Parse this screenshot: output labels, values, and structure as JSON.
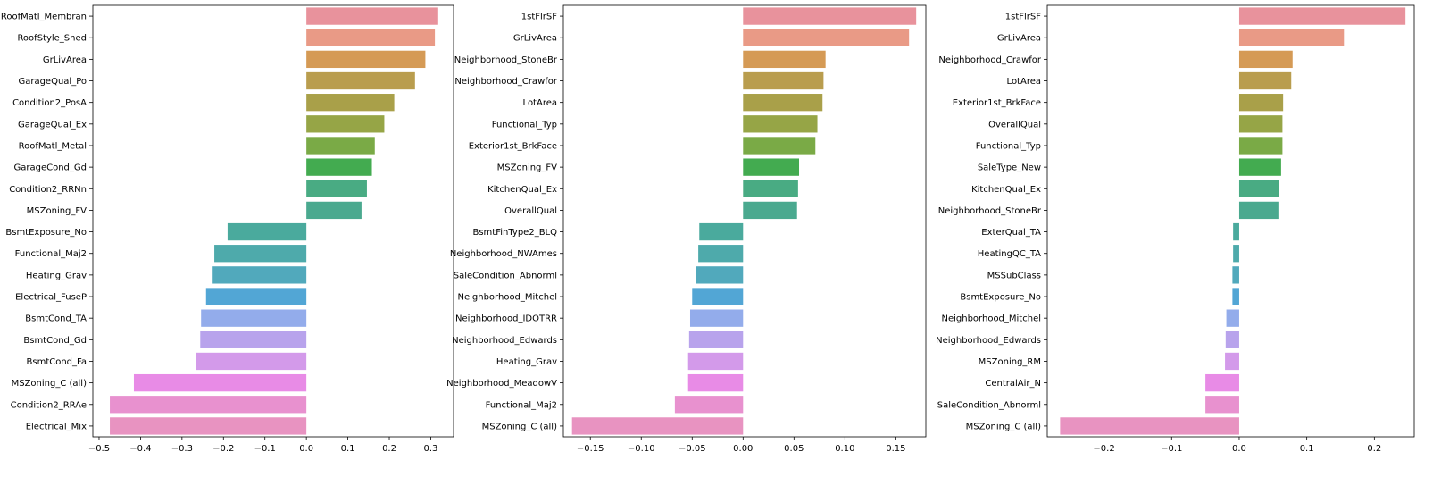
{
  "chart_data": [
    {
      "type": "bar",
      "orientation": "horizontal",
      "xlim": [
        -0.515,
        0.355
      ],
      "xticks": [
        -0.5,
        -0.4,
        -0.3,
        -0.2,
        -0.1,
        0.0,
        0.1,
        0.2,
        0.3
      ],
      "xtick_labels": [
        "−0.5",
        "−0.4",
        "−0.3",
        "−0.2",
        "−0.1",
        "0.0",
        "0.1",
        "0.2",
        "0.3"
      ],
      "categories": [
        "RoofMatl_Membran",
        "RoofStyle_Shed",
        "GrLivArea",
        "GarageQual_Po",
        "Condition2_PosA",
        "GarageQual_Ex",
        "RoofMatl_Metal",
        "GarageCond_Gd",
        "Condition2_RRNn",
        "MSZoning_FV",
        "BsmtExposure_No",
        "Functional_Maj2",
        "Heating_Grav",
        "Electrical_FuseP",
        "BsmtCond_TA",
        "BsmtCond_Gd",
        "BsmtCond_Fa",
        "MSZoning_C (all)",
        "Condition2_RRAe",
        "Electrical_Mix"
      ],
      "values": [
        0.318,
        0.31,
        0.287,
        0.262,
        0.212,
        0.188,
        0.165,
        0.158,
        0.146,
        0.133,
        -0.19,
        -0.222,
        -0.226,
        -0.242,
        -0.254,
        -0.256,
        -0.267,
        -0.416,
        -0.474,
        -0.474
      ]
    },
    {
      "type": "bar",
      "orientation": "horizontal",
      "xlim": [
        -0.1765,
        0.1795
      ],
      "xticks": [
        -0.15,
        -0.1,
        -0.05,
        0.0,
        0.05,
        0.1,
        0.15
      ],
      "xtick_labels": [
        "−0.15",
        "−0.10",
        "−0.05",
        "0.00",
        "0.05",
        "0.10",
        "0.15"
      ],
      "categories": [
        "1stFlrSF",
        "GrLivArea",
        "Neighborhood_StoneBr",
        "Neighborhood_Crawfor",
        "LotArea",
        "Functional_Typ",
        "Exterior1st_BrkFace",
        "MSZoning_FV",
        "KitchenQual_Ex",
        "OverallQual",
        "BsmtFinType2_BLQ",
        "Neighborhood_NWAmes",
        "SaleCondition_Abnorml",
        "Neighborhood_Mitchel",
        "Neighborhood_IDOTRR",
        "Neighborhood_Edwards",
        "Heating_Grav",
        "Neighborhood_MeadowV",
        "Functional_Maj2",
        "MSZoning_C (all)"
      ],
      "values": [
        0.17,
        0.163,
        0.081,
        0.079,
        0.078,
        0.073,
        0.071,
        0.055,
        0.054,
        0.053,
        -0.043,
        -0.044,
        -0.046,
        -0.05,
        -0.052,
        -0.053,
        -0.054,
        -0.054,
        -0.067,
        -0.168
      ]
    },
    {
      "type": "bar",
      "orientation": "horizontal",
      "xlim": [
        -0.284,
        0.259
      ],
      "xticks": [
        -0.2,
        -0.1,
        0.0,
        0.1,
        0.2
      ],
      "xtick_labels": [
        "−0.2",
        "−0.1",
        "0.0",
        "0.1",
        "0.2"
      ],
      "categories": [
        "1stFlrSF",
        "GrLivArea",
        "Neighborhood_Crawfor",
        "LotArea",
        "Exterior1st_BrkFace",
        "OverallQual",
        "Functional_Typ",
        "SaleType_New",
        "KitchenQual_Ex",
        "Neighborhood_StoneBr",
        "ExterQual_TA",
        "HeatingQC_TA",
        "MSSubClass",
        "BsmtExposure_No",
        "Neighborhood_Mitchel",
        "Neighborhood_Edwards",
        "MSZoning_RM",
        "CentralAir_N",
        "SaleCondition_Abnorml",
        "MSZoning_C (all)"
      ],
      "values": [
        0.246,
        0.155,
        0.079,
        0.077,
        0.065,
        0.064,
        0.064,
        0.062,
        0.059,
        0.058,
        -0.009,
        -0.009,
        -0.01,
        -0.01,
        -0.019,
        -0.02,
        -0.021,
        -0.05,
        -0.05,
        -0.265
      ]
    }
  ],
  "palette": [
    "#e8929c",
    "#e99a86",
    "#d59a55",
    "#b99d4e",
    "#a9a049",
    "#96a546",
    "#7aaa46",
    "#43ab50",
    "#49ab83",
    "#4aa98f",
    "#4aaa9d",
    "#4eaaab",
    "#51a9bc",
    "#52a6d5",
    "#93aceb",
    "#b8a3ec",
    "#d39aea",
    "#e88be6",
    "#e891cf",
    "#e893c1"
  ]
}
